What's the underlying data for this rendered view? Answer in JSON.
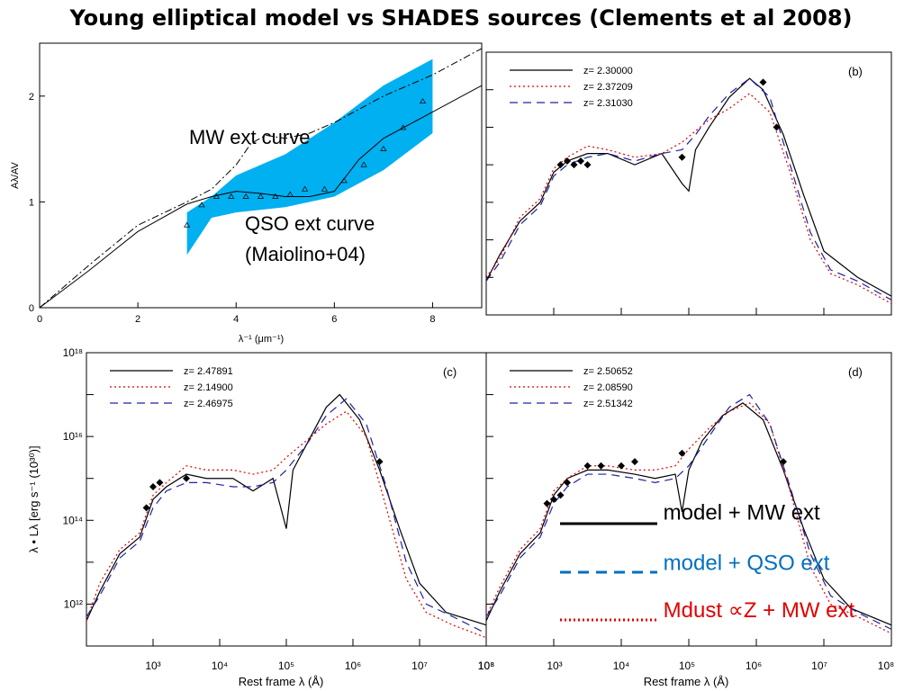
{
  "title": "Young elliptical model vs SHADES sources (Clements et al 2008)",
  "colors": {
    "model": "#000000",
    "qso": "#0070c0",
    "mdust": "#e00000",
    "qso_band": "#00b0f0"
  },
  "overlay_legend": [
    {
      "label": "model + MW ext",
      "style": "solid",
      "color": "#000000"
    },
    {
      "label": "model + QSO ext",
      "style": "dashed",
      "color": "#0070c0"
    },
    {
      "label": "Mdust ∝Z + MW ext",
      "style": "dotted",
      "color": "#e00000"
    }
  ],
  "chart_data": [
    {
      "panel": "a",
      "type": "line",
      "xlabel": "λ⁻¹ (μm⁻¹)",
      "ylabel": "Aλ/AV",
      "xlim": [
        0,
        9
      ],
      "ylim": [
        0,
        2.5
      ],
      "xticks": [
        0,
        2,
        4,
        6,
        8
      ],
      "yticks": [
        0,
        1,
        2
      ],
      "annotations": [
        "MW ext curve",
        "QSO ext curve",
        "(Maiolino+04)"
      ],
      "series": [
        {
          "name": "MW ext curve",
          "style": "dashdot",
          "x": [
            0,
            1,
            2,
            3,
            3.5,
            4,
            4.3,
            4.6,
            5,
            5.5,
            6,
            7,
            8,
            9
          ],
          "y": [
            0,
            0.4,
            0.78,
            1.0,
            1.12,
            1.35,
            1.55,
            1.63,
            1.6,
            1.65,
            1.75,
            2.0,
            2.2,
            2.45
          ]
        },
        {
          "name": "QSO ext curve",
          "style": "solid",
          "x": [
            0,
            1,
            2,
            3,
            3.5,
            4,
            4.5,
            5,
            5.5,
            6,
            6.5,
            7,
            8,
            9
          ],
          "y": [
            0,
            0.35,
            0.72,
            0.98,
            1.05,
            1.1,
            1.08,
            1.05,
            1.05,
            1.1,
            1.4,
            1.6,
            1.85,
            2.1
          ]
        }
      ],
      "band": {
        "x": [
          3,
          3.5,
          4,
          5,
          6,
          7,
          8
        ],
        "lower": [
          0.5,
          0.85,
          0.9,
          0.95,
          1.05,
          1.3,
          1.65
        ],
        "upper": [
          0.9,
          1.05,
          1.25,
          1.45,
          1.75,
          2.1,
          2.35
        ]
      },
      "points": {
        "x": [
          3,
          3.3,
          3.6,
          3.9,
          4.2,
          4.5,
          4.8,
          5.1,
          5.4,
          5.8,
          6.2,
          6.6,
          7,
          7.4,
          7.8
        ],
        "y": [
          0.78,
          0.97,
          1.05,
          1.05,
          1.05,
          1.05,
          1.05,
          1.07,
          1.12,
          1.12,
          1.2,
          1.35,
          1.5,
          1.7,
          1.95
        ]
      }
    },
    {
      "panel": "b",
      "type": "line",
      "label": "(b)",
      "xlim_log": [
        2,
        8
      ],
      "ylim_log": [
        11,
        18
      ],
      "legend": [
        "z= 2.30000",
        "z= 2.37209",
        "z= 2.31030"
      ],
      "series_styles": [
        "solid",
        "dotted",
        "dashed"
      ],
      "series_colors": [
        "#000000",
        "#e00000",
        "#2020a0"
      ],
      "series": [
        {
          "x": [
            2,
            2.2,
            2.5,
            2.8,
            3.0,
            3.2,
            3.5,
            3.8,
            4.2,
            4.6,
            4.9,
            5.0,
            5.1,
            5.3,
            5.6,
            5.9,
            6.1,
            6.4,
            6.7,
            7.0,
            7.5,
            8.0
          ],
          "y": [
            11.9,
            12.6,
            13.5,
            14.0,
            14.8,
            15.1,
            15.3,
            15.3,
            15.0,
            15.3,
            14.5,
            14.3,
            15.4,
            16.0,
            16.8,
            17.3,
            17.0,
            15.8,
            14.2,
            12.7,
            12.0,
            11.5
          ]
        },
        {
          "x": [
            2,
            2.2,
            2.5,
            2.8,
            3.0,
            3.2,
            3.5,
            3.8,
            4.2,
            4.6,
            4.9,
            5.1,
            5.3,
            5.6,
            5.9,
            6.2,
            6.5,
            6.8,
            7.1,
            7.5,
            8.0
          ],
          "y": [
            12.0,
            12.5,
            13.6,
            14.1,
            14.9,
            15.2,
            15.5,
            15.4,
            15.2,
            15.3,
            15.6,
            15.9,
            16.2,
            16.5,
            16.9,
            16.4,
            14.8,
            13.0,
            12.1,
            11.8,
            11.3
          ]
        },
        {
          "x": [
            2,
            2.2,
            2.5,
            2.8,
            3.0,
            3.2,
            3.5,
            3.8,
            4.2,
            4.6,
            4.9,
            5.1,
            5.3,
            5.6,
            5.9,
            6.2,
            6.5,
            6.8,
            7.1,
            7.5,
            8.0
          ],
          "y": [
            11.9,
            12.4,
            13.4,
            13.9,
            14.7,
            15.0,
            15.2,
            15.3,
            15.1,
            15.3,
            15.4,
            15.8,
            16.3,
            16.9,
            17.3,
            16.8,
            15.0,
            13.2,
            12.2,
            11.9,
            11.4
          ]
        }
      ],
      "points": {
        "x": [
          3.1,
          3.2,
          3.3,
          3.4,
          3.5,
          4.9,
          6.1,
          6.3
        ],
        "y": [
          15.0,
          15.1,
          15.0,
          15.1,
          15.0,
          15.2,
          17.2,
          16.0
        ]
      }
    },
    {
      "panel": "c",
      "type": "line",
      "label": "(c)",
      "xlim_log": [
        2,
        8
      ],
      "ylim_log": [
        11,
        18
      ],
      "ytick_labels": [
        "10¹⁸",
        "10¹⁶",
        "10¹⁴",
        "10¹²"
      ],
      "xtick_labels": [
        "10³",
        "10⁴",
        "10⁵",
        "10⁶",
        "10⁷",
        "10⁸"
      ],
      "ylabel": "λ • Lλ [erg s⁻¹ (10³⁰)]",
      "xlabel": "Rest frame λ (Å)",
      "legend": [
        "z= 2.47891",
        "z= 2.14900",
        "z= 2.46975"
      ],
      "series_styles": [
        "solid",
        "dotted",
        "dashed"
      ],
      "series_colors": [
        "#000000",
        "#e00000",
        "#2020a0"
      ],
      "series": [
        {
          "x": [
            2,
            2.2,
            2.5,
            2.8,
            3.0,
            3.2,
            3.5,
            3.8,
            4.2,
            4.5,
            4.8,
            5.0,
            5.1,
            5.3,
            5.6,
            5.8,
            6.1,
            6.4,
            6.7,
            7.0,
            7.4,
            8.0
          ],
          "y": [
            11.6,
            12.3,
            13.2,
            13.6,
            14.5,
            14.8,
            15.1,
            15.0,
            15.0,
            14.7,
            15.0,
            13.8,
            15.2,
            15.8,
            16.7,
            17.0,
            16.4,
            15.2,
            13.8,
            12.5,
            11.8,
            11.5
          ]
        },
        {
          "x": [
            2,
            2.2,
            2.5,
            2.8,
            3.0,
            3.2,
            3.5,
            3.8,
            4.2,
            4.5,
            4.8,
            5.0,
            5.3,
            5.6,
            5.9,
            6.2,
            6.5,
            6.8,
            7.1,
            7.5,
            8.0
          ],
          "y": [
            11.6,
            12.5,
            13.3,
            13.7,
            14.6,
            14.9,
            15.3,
            15.2,
            15.2,
            15.1,
            15.2,
            15.5,
            15.9,
            16.3,
            16.6,
            16.0,
            14.3,
            12.6,
            11.8,
            11.5,
            11.2
          ]
        },
        {
          "x": [
            2,
            2.2,
            2.5,
            2.8,
            3.0,
            3.2,
            3.5,
            3.8,
            4.2,
            4.5,
            4.8,
            5.0,
            5.3,
            5.6,
            5.9,
            6.2,
            6.5,
            6.8,
            7.1,
            7.5,
            8.0
          ],
          "y": [
            11.7,
            12.2,
            13.1,
            13.5,
            14.3,
            14.7,
            14.9,
            14.9,
            14.8,
            14.8,
            14.9,
            15.2,
            15.8,
            16.5,
            16.9,
            16.3,
            14.8,
            13.0,
            12.0,
            11.7,
            11.3
          ]
        }
      ],
      "points": {
        "x": [
          2.9,
          3.0,
          3.1,
          3.5,
          6.4
        ],
        "y": [
          14.3,
          14.8,
          14.9,
          15.0,
          15.4
        ]
      }
    },
    {
      "panel": "d",
      "type": "line",
      "label": "(d)",
      "xlim_log": [
        2,
        8
      ],
      "ylim_log": [
        11,
        18
      ],
      "xtick_labels": [
        "10⁸",
        "10³",
        "10⁴",
        "10⁵",
        "10⁶",
        "10⁷",
        "10⁸"
      ],
      "xlabel": "Rest frame λ (Å)",
      "legend": [
        "z= 2.50652",
        "z= 2.08590",
        "z= 2.51342"
      ],
      "series_styles": [
        "solid",
        "dotted",
        "dashed"
      ],
      "series_colors": [
        "#000000",
        "#e00000",
        "#2020a0"
      ],
      "series": [
        {
          "x": [
            2,
            2.2,
            2.5,
            2.8,
            3.0,
            3.2,
            3.5,
            3.8,
            4.2,
            4.5,
            4.8,
            4.9,
            5.0,
            5.2,
            5.5,
            5.8,
            6.1,
            6.4,
            6.7,
            7.0,
            7.4,
            8.0
          ],
          "y": [
            11.6,
            12.3,
            13.2,
            13.7,
            14.6,
            15.0,
            15.2,
            15.2,
            15.1,
            15.0,
            15.1,
            14.2,
            15.2,
            15.9,
            16.5,
            16.8,
            16.4,
            15.2,
            13.8,
            12.6,
            11.9,
            11.5
          ]
        },
        {
          "x": [
            2,
            2.2,
            2.5,
            2.8,
            3.0,
            3.2,
            3.5,
            3.8,
            4.2,
            4.5,
            4.8,
            5.0,
            5.3,
            5.6,
            5.9,
            6.2,
            6.5,
            6.8,
            7.1,
            7.5,
            8.0
          ],
          "y": [
            11.7,
            12.4,
            13.3,
            13.8,
            14.7,
            15.0,
            15.3,
            15.3,
            15.2,
            15.2,
            15.3,
            15.7,
            16.2,
            16.6,
            16.8,
            16.3,
            14.7,
            12.9,
            12.0,
            11.7,
            11.3
          ]
        },
        {
          "x": [
            2,
            2.2,
            2.5,
            2.8,
            3.0,
            3.2,
            3.5,
            3.8,
            4.2,
            4.5,
            4.8,
            5.0,
            5.3,
            5.6,
            5.9,
            6.2,
            6.5,
            6.8,
            7.1,
            7.5,
            8.0
          ],
          "y": [
            11.7,
            12.2,
            13.1,
            13.6,
            14.4,
            14.8,
            15.1,
            15.1,
            15.0,
            14.9,
            15.0,
            15.3,
            16.0,
            16.7,
            17.0,
            16.3,
            14.8,
            13.2,
            12.2,
            11.8,
            11.4
          ]
        }
      ],
      "points": {
        "x": [
          2.9,
          3.0,
          3.1,
          3.2,
          3.5,
          3.7,
          4.0,
          4.2,
          4.9,
          6.4
        ],
        "y": [
          14.4,
          14.5,
          14.6,
          14.9,
          15.3,
          15.3,
          15.3,
          15.4,
          15.6,
          15.4
        ]
      }
    }
  ]
}
